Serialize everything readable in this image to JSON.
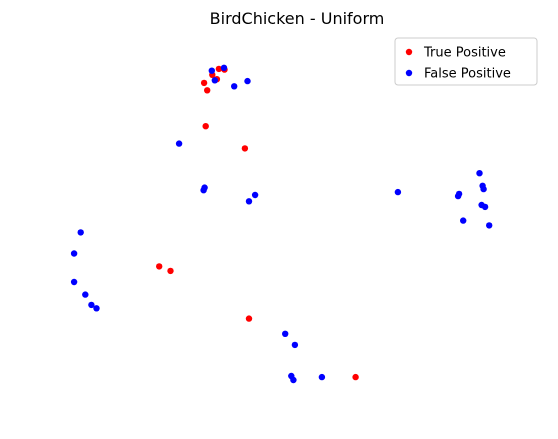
{
  "chart_data": {
    "type": "scatter",
    "title": "BirdChicken - Uniform",
    "xlabel": "",
    "ylabel": "",
    "axes_visible": false,
    "grid": false,
    "legend_position": "top-right",
    "xlim": [
      0,
      100
    ],
    "ylim": [
      0,
      100
    ],
    "series": [
      {
        "name": "True Positive",
        "color": "#ff0000",
        "points": [
          {
            "x": 32.8,
            "y": 90.6
          },
          {
            "x": 34.1,
            "y": 92.2
          },
          {
            "x": 33.7,
            "y": 89.4
          },
          {
            "x": 31.2,
            "y": 88.4
          },
          {
            "x": 35.2,
            "y": 92.0
          },
          {
            "x": 31.8,
            "y": 86.4
          },
          {
            "x": 31.5,
            "y": 76.7
          },
          {
            "x": 39.2,
            "y": 70.7
          },
          {
            "x": 22.4,
            "y": 38.8
          },
          {
            "x": 24.6,
            "y": 37.6
          },
          {
            "x": 40.0,
            "y": 24.7
          },
          {
            "x": 60.9,
            "y": 8.9
          }
        ]
      },
      {
        "name": "False Positive",
        "color": "#0000ff",
        "points": [
          {
            "x": 32.7,
            "y": 91.7
          },
          {
            "x": 35.1,
            "y": 92.5
          },
          {
            "x": 33.3,
            "y": 89.1
          },
          {
            "x": 37.1,
            "y": 87.5
          },
          {
            "x": 39.7,
            "y": 88.9
          },
          {
            "x": 26.3,
            "y": 72.0
          },
          {
            "x": 31.3,
            "y": 60.1
          },
          {
            "x": 31.1,
            "y": 59.4
          },
          {
            "x": 41.2,
            "y": 58.1
          },
          {
            "x": 40.0,
            "y": 56.4
          },
          {
            "x": 69.2,
            "y": 58.9
          },
          {
            "x": 85.2,
            "y": 64.0
          },
          {
            "x": 85.8,
            "y": 60.6
          },
          {
            "x": 86.0,
            "y": 59.7
          },
          {
            "x": 81.2,
            "y": 58.4
          },
          {
            "x": 81.0,
            "y": 57.8
          },
          {
            "x": 85.6,
            "y": 55.4
          },
          {
            "x": 86.3,
            "y": 54.9
          },
          {
            "x": 82.0,
            "y": 51.2
          },
          {
            "x": 87.1,
            "y": 49.9
          },
          {
            "x": 7.0,
            "y": 48.0
          },
          {
            "x": 5.7,
            "y": 42.3
          },
          {
            "x": 5.7,
            "y": 34.6
          },
          {
            "x": 7.9,
            "y": 31.2
          },
          {
            "x": 9.1,
            "y": 28.4
          },
          {
            "x": 10.1,
            "y": 27.5
          },
          {
            "x": 47.1,
            "y": 20.6
          },
          {
            "x": 49.0,
            "y": 17.6
          },
          {
            "x": 48.3,
            "y": 9.2
          },
          {
            "x": 48.7,
            "y": 8.1
          },
          {
            "x": 54.3,
            "y": 8.9
          }
        ]
      }
    ]
  }
}
